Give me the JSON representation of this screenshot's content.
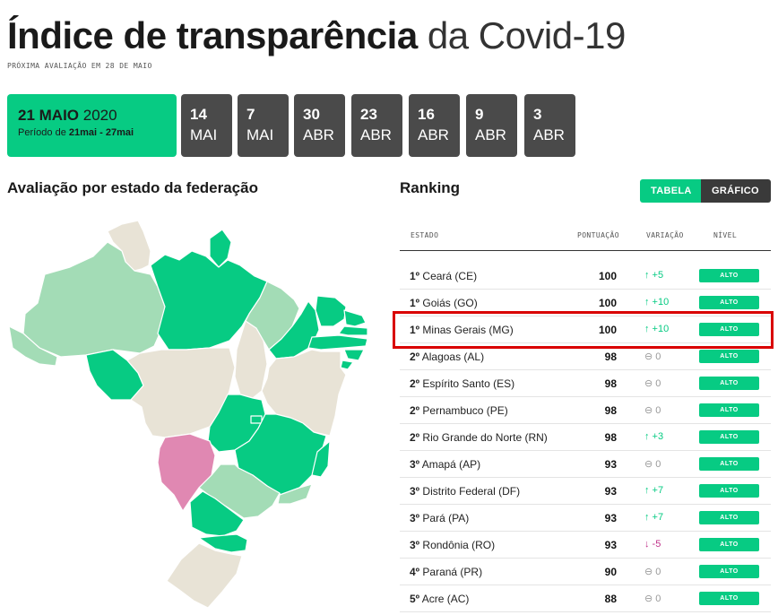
{
  "header": {
    "title_bold": "Índice de transparência",
    "title_light": "da Covid-19",
    "subtitle": "PRÓXIMA AVALIAÇÃO EM 28 DE MAIO"
  },
  "current_date": {
    "day_month": "21 MAIO",
    "year": "2020",
    "period_prefix": "Período de",
    "period_range": "21mai - 27mai"
  },
  "past_dates": [
    {
      "day": "14",
      "month": "MAI"
    },
    {
      "day": "7",
      "month": "MAI"
    },
    {
      "day": "30",
      "month": "ABR"
    },
    {
      "day": "23",
      "month": "ABR"
    },
    {
      "day": "16",
      "month": "ABR"
    },
    {
      "day": "9",
      "month": "ABR"
    },
    {
      "day": "3",
      "month": "ABR"
    }
  ],
  "map": {
    "title": "Avaliação por estado da federação",
    "colors": {
      "alto": "#07cb83",
      "bom": "#a3dcb6",
      "regular": "#e8e3d6",
      "ruim": "#e088b2",
      "border": "#ffffff"
    }
  },
  "ranking": {
    "title": "Ranking",
    "toggle": {
      "table": "TABELA",
      "chart": "GRÁFICO"
    },
    "columns": {
      "state": "ESTADO",
      "score": "PONTUAÇÃO",
      "variation": "VARIAÇÃO",
      "level": "NÍVEL"
    },
    "rows": [
      {
        "rank": "1º",
        "state": "Ceará (CE)",
        "score": "100",
        "variation": "↑ +5",
        "dir": "up",
        "level": "ALTO"
      },
      {
        "rank": "1º",
        "state": "Goiás (GO)",
        "score": "100",
        "variation": "↑ +10",
        "dir": "up",
        "level": "ALTO"
      },
      {
        "rank": "1º",
        "state": "Minas Gerais (MG)",
        "score": "100",
        "variation": "↑ +10",
        "dir": "up",
        "level": "ALTO"
      },
      {
        "rank": "2º",
        "state": "Alagoas (AL)",
        "score": "98",
        "variation": "⊖ 0",
        "dir": "zero",
        "level": "ALTO"
      },
      {
        "rank": "2º",
        "state": "Espírito Santo (ES)",
        "score": "98",
        "variation": "⊖ 0",
        "dir": "zero",
        "level": "ALTO"
      },
      {
        "rank": "2º",
        "state": "Pernambuco (PE)",
        "score": "98",
        "variation": "⊖ 0",
        "dir": "zero",
        "level": "ALTO"
      },
      {
        "rank": "2º",
        "state": "Rio Grande do Norte (RN)",
        "score": "98",
        "variation": "↑ +3",
        "dir": "up",
        "level": "ALTO"
      },
      {
        "rank": "3º",
        "state": "Amapá (AP)",
        "score": "93",
        "variation": "⊖ 0",
        "dir": "zero",
        "level": "ALTO"
      },
      {
        "rank": "3º",
        "state": "Distrito Federal (DF)",
        "score": "93",
        "variation": "↑ +7",
        "dir": "up",
        "level": "ALTO"
      },
      {
        "rank": "3º",
        "state": "Pará (PA)",
        "score": "93",
        "variation": "↑ +7",
        "dir": "up",
        "level": "ALTO"
      },
      {
        "rank": "3º",
        "state": "Rondônia (RO)",
        "score": "93",
        "variation": "↓ -5",
        "dir": "down",
        "level": "ALTO"
      },
      {
        "rank": "4º",
        "state": "Paraná (PR)",
        "score": "90",
        "variation": "⊖ 0",
        "dir": "zero",
        "level": "ALTO"
      },
      {
        "rank": "5º",
        "state": "Acre (AC)",
        "score": "88",
        "variation": "⊖ 0",
        "dir": "zero",
        "level": "ALTO"
      }
    ]
  }
}
